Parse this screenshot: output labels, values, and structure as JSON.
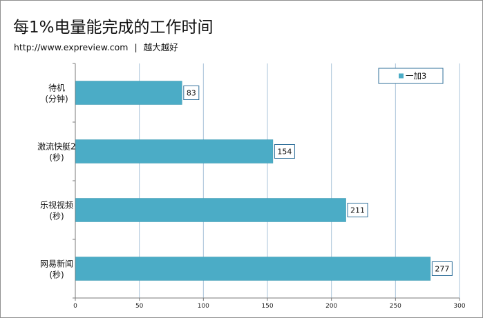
{
  "header": {
    "title": "每1%电量能完成的工作时间",
    "url": "http://www.expreview.com",
    "separator": "|",
    "slogan": "越大越好"
  },
  "colors": {
    "bar": "#4bacc6",
    "bar_edge": "#3a97b0",
    "gridline": "#a9c3d9",
    "axis": "#7a7a7a",
    "label_border": "#2f6f9a"
  },
  "chart_data": {
    "type": "bar",
    "orientation": "horizontal",
    "categories": [
      [
        "待机",
        "(分钟)"
      ],
      [
        "激流快艇2",
        "(秒)"
      ],
      [
        "乐视视频",
        "(秒)"
      ],
      [
        "网易新闻",
        "(秒)"
      ]
    ],
    "series": [
      {
        "name": "一加3",
        "values": [
          83,
          154,
          211,
          277
        ]
      }
    ],
    "xlim": [
      0,
      300
    ],
    "xticks": [
      0,
      50,
      100,
      150,
      200,
      250,
      300
    ],
    "grid": true,
    "data_labels": true,
    "legend_position": "top-right"
  }
}
